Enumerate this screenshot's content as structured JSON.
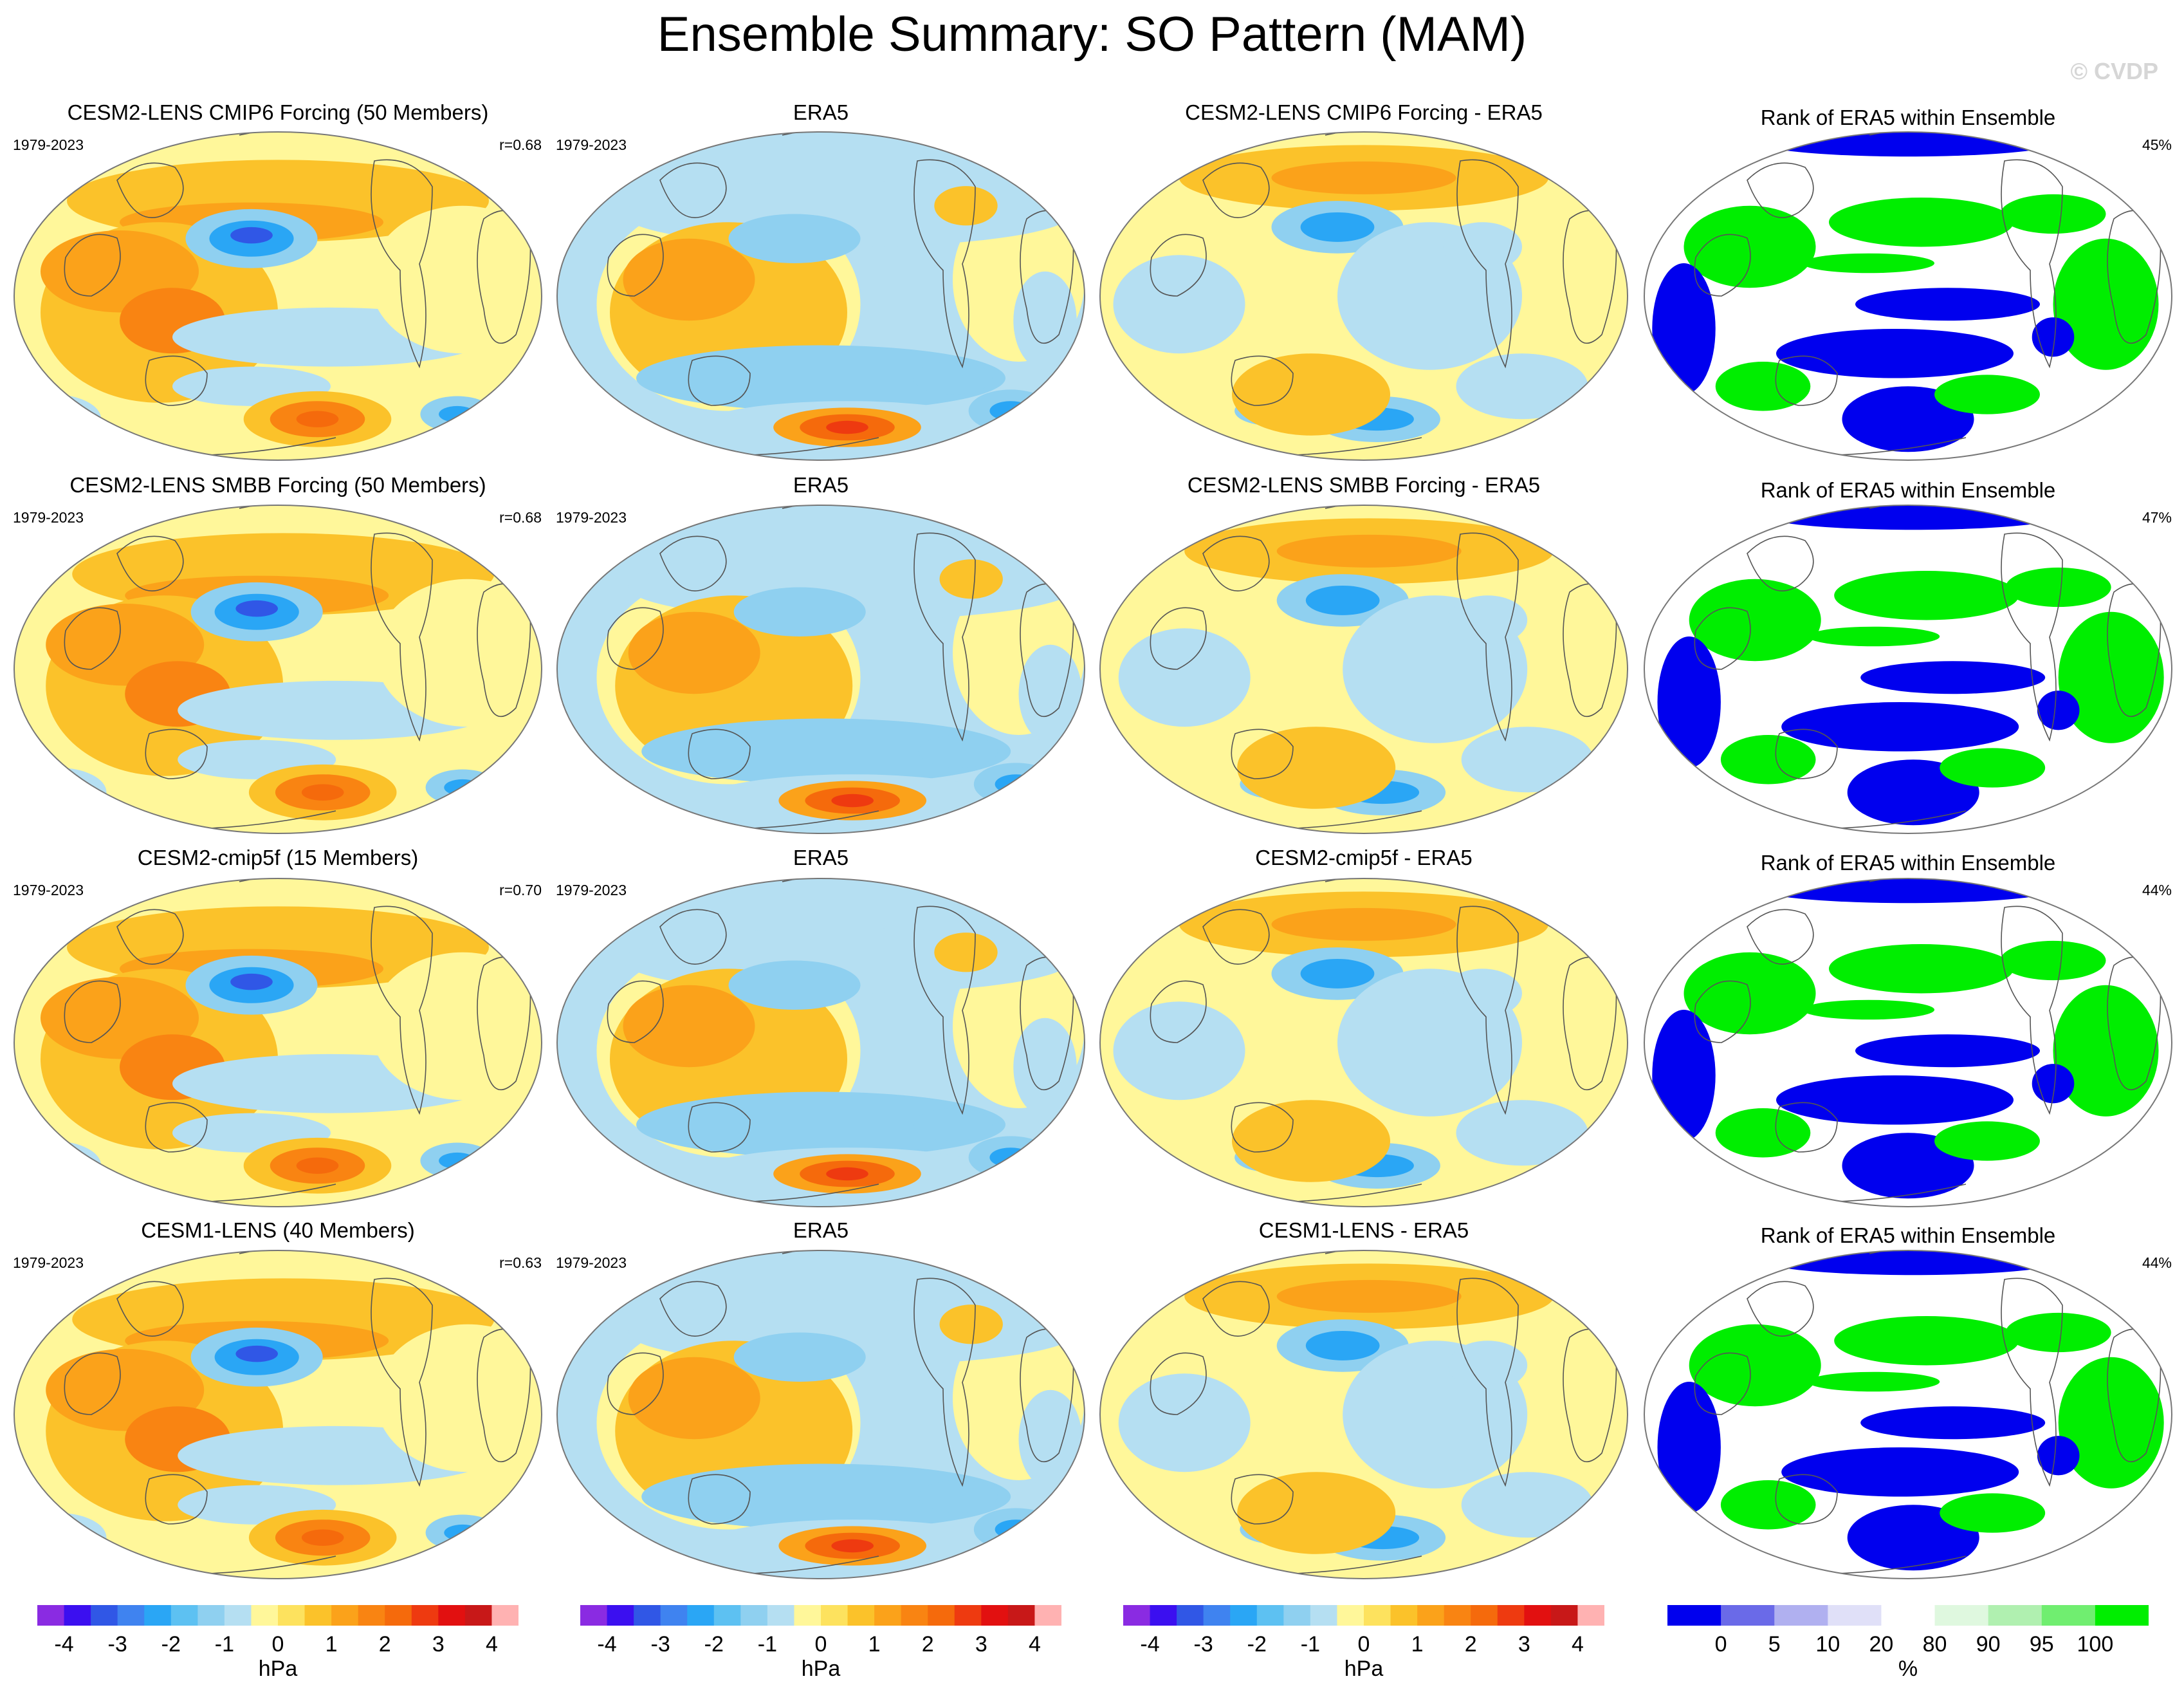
{
  "page": {
    "title": "Ensemble Summary: SO Pattern (MAM)",
    "watermark": "© CVDP"
  },
  "chart_data": {
    "type": "heatmap",
    "description_rows": 4,
    "columns": [
      "ensemble_mean",
      "observations",
      "difference",
      "rank"
    ],
    "rows": [
      {
        "panels": [
          {
            "title": "CESM2-LENS CMIP6 Forcing (50 Members)",
            "period": "1979-2023",
            "stat": "r=0.68",
            "kind": "model"
          },
          {
            "title": "ERA5",
            "period": "1979-2023",
            "stat": "",
            "kind": "obs"
          },
          {
            "title": "CESM2-LENS CMIP6 Forcing - ERA5",
            "period": "",
            "stat": "",
            "kind": "diff"
          },
          {
            "title": "Rank of ERA5 within Ensemble",
            "period": "",
            "stat": "45%",
            "kind": "rank"
          }
        ]
      },
      {
        "panels": [
          {
            "title": "CESM2-LENS SMBB Forcing (50 Members)",
            "period": "1979-2023",
            "stat": "r=0.68",
            "kind": "model"
          },
          {
            "title": "ERA5",
            "period": "1979-2023",
            "stat": "",
            "kind": "obs"
          },
          {
            "title": "CESM2-LENS SMBB Forcing - ERA5",
            "period": "",
            "stat": "",
            "kind": "diff"
          },
          {
            "title": "Rank of ERA5 within Ensemble",
            "period": "",
            "stat": "47%",
            "kind": "rank"
          }
        ]
      },
      {
        "panels": [
          {
            "title": "CESM2-cmip5f (15 Members)",
            "period": "1979-2023",
            "stat": "r=0.70",
            "kind": "model"
          },
          {
            "title": "ERA5",
            "period": "1979-2023",
            "stat": "",
            "kind": "obs"
          },
          {
            "title": "CESM2-cmip5f - ERA5",
            "period": "",
            "stat": "",
            "kind": "diff"
          },
          {
            "title": "Rank of ERA5 within Ensemble",
            "period": "",
            "stat": "44%",
            "kind": "rank"
          }
        ]
      },
      {
        "panels": [
          {
            "title": "CESM1-LENS (40 Members)",
            "period": "1979-2023",
            "stat": "r=0.63",
            "kind": "model"
          },
          {
            "title": "ERA5",
            "period": "1979-2023",
            "stat": "",
            "kind": "obs"
          },
          {
            "title": "CESM1-LENS - ERA5",
            "period": "",
            "stat": "",
            "kind": "diff"
          },
          {
            "title": "Rank of ERA5 within Ensemble",
            "period": "",
            "stat": "44%",
            "kind": "rank"
          }
        ]
      }
    ],
    "colorbars": [
      {
        "name": "pressure",
        "unit": "hPa",
        "levels": [
          -4.5,
          -4,
          -3.5,
          -3,
          -2.5,
          -2,
          -1.5,
          -1,
          -0.5,
          0,
          0.5,
          1,
          1.5,
          2,
          2.5,
          3,
          3.5,
          4,
          4.5
        ],
        "tick_labels": [
          "-4",
          "-3",
          "-2",
          "-1",
          "0",
          "1",
          "2",
          "3",
          "4"
        ],
        "tick_values": [
          -4,
          -3,
          -2,
          -1,
          0,
          1,
          2,
          3,
          4
        ],
        "colors": [
          "#8a2be2",
          "#3b0ff0",
          "#3057e6",
          "#3f83f0",
          "#2aa6f5",
          "#5dc1f2",
          "#8fd0f0",
          "#b5dff2",
          "#fff79a",
          "#fde25e",
          "#fbc22a",
          "#fba21a",
          "#f98412",
          "#f56a0c",
          "#ee3a10",
          "#e21010",
          "#c81818",
          "#ffb2b2"
        ]
      },
      {
        "name": "rank",
        "unit": "%",
        "tick_labels": [
          "0",
          "5",
          "10",
          "20",
          "80",
          "90",
          "95",
          "100"
        ],
        "tick_values": [
          0,
          5,
          10,
          20,
          80,
          90,
          95,
          100
        ],
        "colors": [
          "#0000ee",
          "#6a6ae8",
          "#b0b0f0",
          "#e0e0f8",
          "#ffffff",
          "#dff8df",
          "#b0f0b0",
          "#70ee70",
          "#00ee00"
        ]
      }
    ]
  }
}
